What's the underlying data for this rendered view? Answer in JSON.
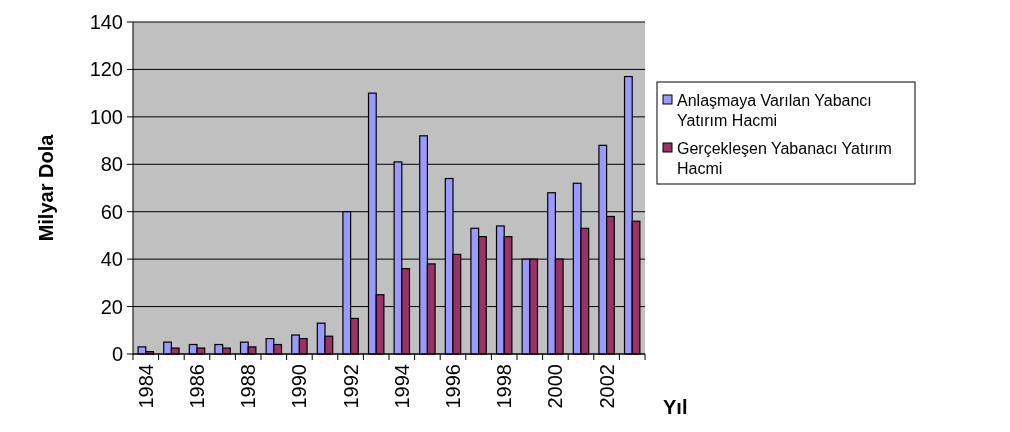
{
  "chart_data": {
    "type": "bar",
    "xlabel": "Yıl",
    "ylabel": "Milyar Dola",
    "categories": [
      "1984",
      null,
      "1986",
      null,
      "1988",
      null,
      "1990",
      null,
      "1992",
      null,
      "1994",
      null,
      "1996",
      null,
      "1998",
      null,
      "2000",
      null,
      "2002",
      null
    ],
    "series": [
      {
        "name": "Anlaşmaya Varılan Yabancı Yatırım Hacmi",
        "color": "#9999ff",
        "values": [
          3,
          5,
          4,
          4,
          5,
          6.5,
          8,
          13,
          60,
          110,
          81,
          92,
          74,
          53,
          54,
          40,
          68,
          72,
          88,
          117
        ]
      },
      {
        "name": "Gerçekleşen Yabanacı Yatırım Hacmi",
        "color": "#993366",
        "values": [
          1,
          2.5,
          2.5,
          2.5,
          3,
          4,
          6.5,
          7.5,
          15,
          25,
          36,
          38,
          42,
          49.5,
          49.5,
          40,
          40,
          53,
          58,
          56
        ]
      }
    ],
    "ylim": [
      0,
      140
    ],
    "yticks": [
      0,
      20,
      40,
      60,
      80,
      100,
      120,
      140
    ],
    "grid": "y",
    "legend": "right"
  }
}
